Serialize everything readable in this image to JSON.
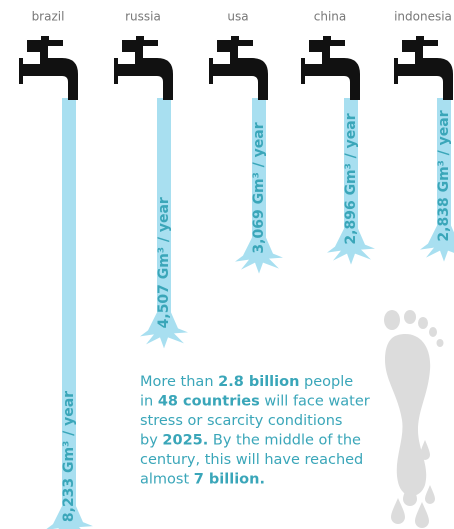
{
  "chart_data": {
    "type": "bar",
    "categories": [
      "brazil",
      "russia",
      "usa",
      "china",
      "indonesia"
    ],
    "values": [
      8233,
      4507,
      3069,
      2896,
      2838
    ],
    "value_labels": [
      "8,233 Gm³ / year",
      "4,507 Gm³ / year",
      "3,069 Gm³ / year",
      "2,896 Gm³ / year",
      "2,838 Gm³ / year"
    ],
    "color": "#a8dff0",
    "annotation": [
      [
        {
          "text": "More than "
        },
        {
          "text": "2.8 billion",
          "bold": true
        },
        {
          "text": " people"
        }
      ],
      [
        {
          "text": "in "
        },
        {
          "text": "48 countries",
          "bold": true
        },
        {
          "text": " will face water"
        }
      ],
      [
        {
          "text": "stress or scarcity conditions"
        }
      ],
      [
        {
          "text": "by "
        },
        {
          "text": "2025.",
          "bold": true
        },
        {
          "text": " By the middle of the"
        }
      ],
      [
        {
          "text": "century, this will have reached"
        }
      ],
      [
        {
          "text": "almost "
        },
        {
          "text": "7 billion.",
          "bold": true
        }
      ]
    ]
  }
}
